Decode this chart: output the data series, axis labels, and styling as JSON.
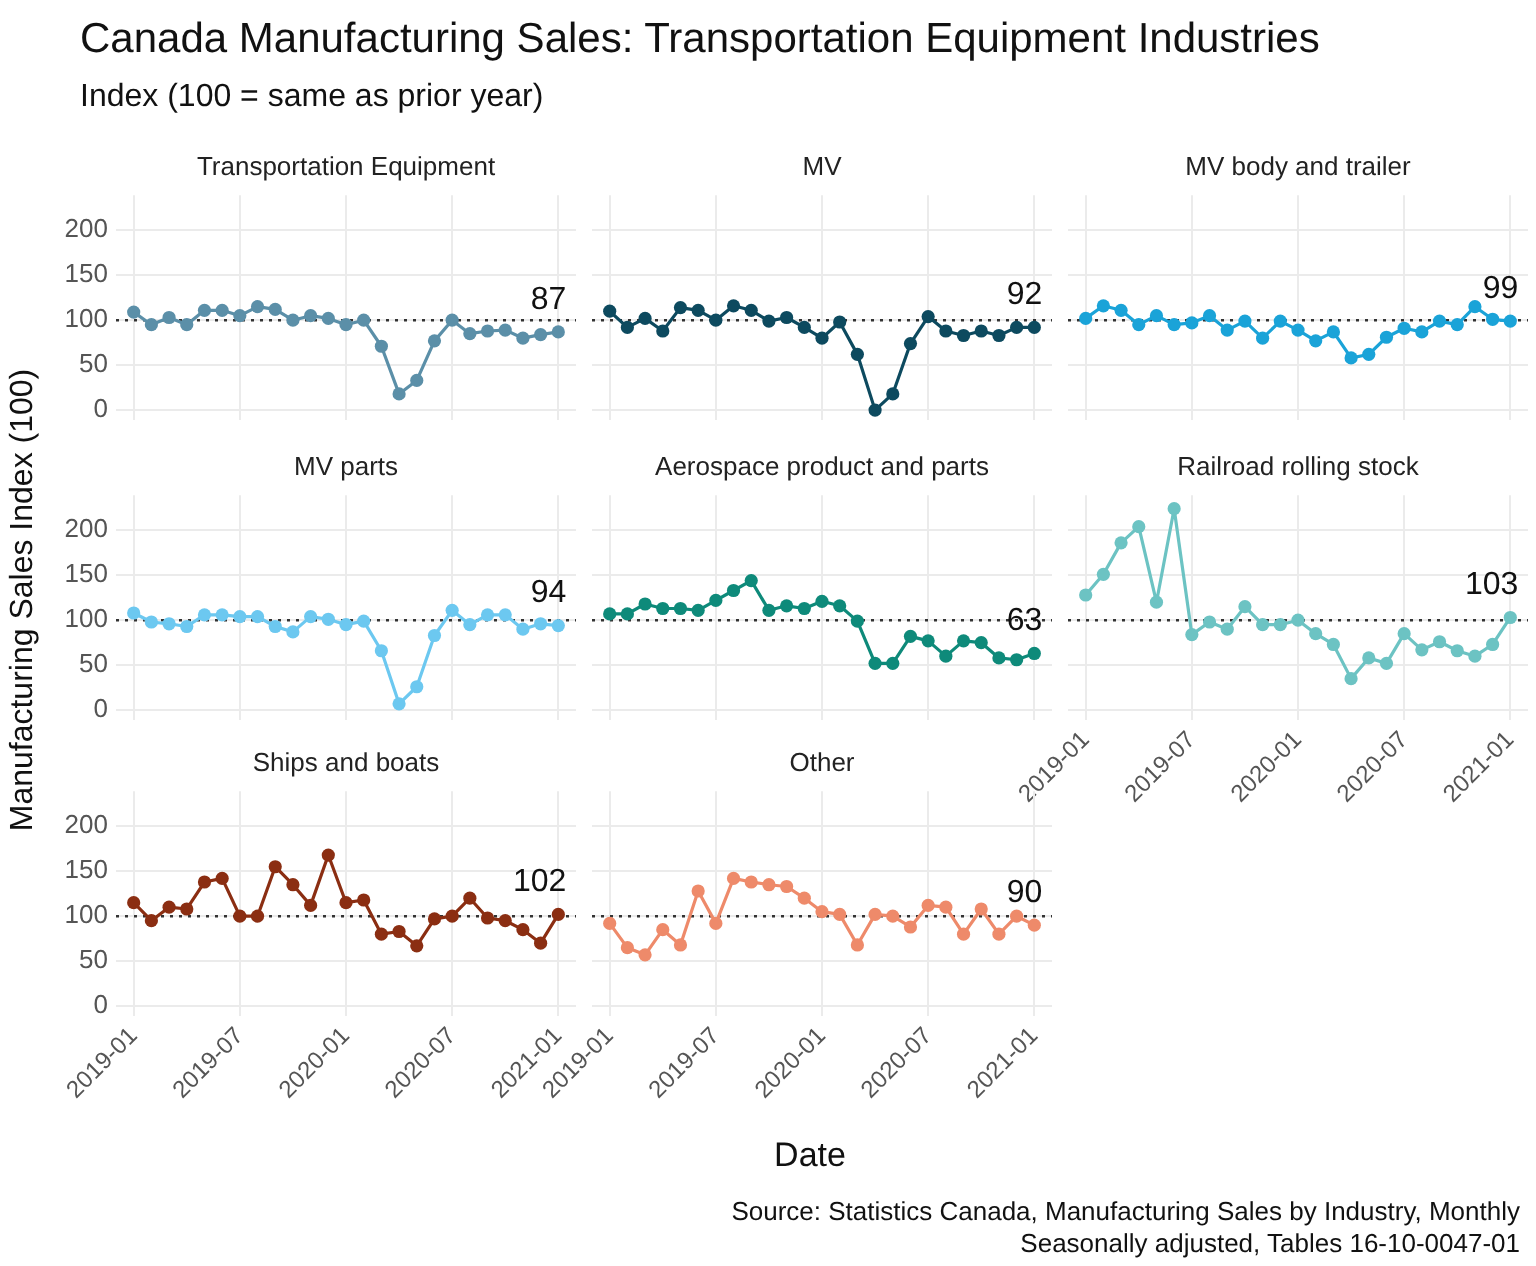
{
  "chart_data": [
    {
      "type": "line",
      "title": "Transportation Equipment",
      "x": [
        "2019-01",
        "2019-02",
        "2019-03",
        "2019-04",
        "2019-05",
        "2019-06",
        "2019-07",
        "2019-08",
        "2019-09",
        "2019-10",
        "2019-11",
        "2019-12",
        "2020-01",
        "2020-02",
        "2020-03",
        "2020-04",
        "2020-05",
        "2020-06",
        "2020-07",
        "2020-08",
        "2020-09",
        "2020-10",
        "2020-11",
        "2020-12",
        "2021-01"
      ],
      "series": [
        {
          "color": "#5b8fa8",
          "values": [
            109,
            95,
            103,
            95,
            111,
            111,
            105,
            115,
            112,
            100,
            105,
            102,
            95,
            100,
            71,
            18,
            33,
            77,
            100,
            85,
            88,
            89,
            80,
            84,
            87
          ]
        }
      ],
      "xlim": [
        "2018-12",
        "2021-02"
      ],
      "xticks": [
        "2019-01",
        "2019-07",
        "2020-01",
        "2020-07",
        "2021-01"
      ],
      "ylim": [
        -11,
        239
      ],
      "yticks": [
        0,
        50,
        100,
        150,
        200
      ],
      "ref_lines": [
        {
          "axis": "y",
          "value": 100,
          "color": "#333333",
          "line_style": "dotted"
        }
      ],
      "annotations": [
        {
          "text": "87",
          "x": "2021-01",
          "y": 87
        }
      ],
      "grid": true,
      "marker": "circle",
      "line_style": "solid",
      "tick_labels": "y"
    },
    {
      "type": "line",
      "title": "MV",
      "x": [
        "2019-01",
        "2019-02",
        "2019-03",
        "2019-04",
        "2019-05",
        "2019-06",
        "2019-07",
        "2019-08",
        "2019-09",
        "2019-10",
        "2019-11",
        "2019-12",
        "2020-01",
        "2020-02",
        "2020-03",
        "2020-04",
        "2020-05",
        "2020-06",
        "2020-07",
        "2020-08",
        "2020-09",
        "2020-10",
        "2020-11",
        "2020-12",
        "2021-01"
      ],
      "series": [
        {
          "color": "#0d4a5f",
          "values": [
            110,
            92,
            102,
            88,
            114,
            111,
            100,
            116,
            111,
            99,
            103,
            92,
            80,
            98,
            62,
            0,
            18,
            74,
            104,
            88,
            83,
            88,
            83,
            92,
            92
          ]
        }
      ],
      "xlim": [
        "2018-12",
        "2021-02"
      ],
      "xticks": [
        "2019-01",
        "2019-07",
        "2020-01",
        "2020-07",
        "2021-01"
      ],
      "ylim": [
        -11,
        239
      ],
      "yticks": [
        0,
        50,
        100,
        150,
        200
      ],
      "ref_lines": [
        {
          "axis": "y",
          "value": 100,
          "color": "#333333",
          "line_style": "dotted"
        }
      ],
      "annotations": [
        {
          "text": "92",
          "x": "2021-01",
          "y": 92
        }
      ],
      "grid": true,
      "marker": "circle",
      "line_style": "solid",
      "tick_labels": false
    },
    {
      "type": "line",
      "title": "MV body and trailer",
      "x": [
        "2019-01",
        "2019-02",
        "2019-03",
        "2019-04",
        "2019-05",
        "2019-06",
        "2019-07",
        "2019-08",
        "2019-09",
        "2019-10",
        "2019-11",
        "2019-12",
        "2020-01",
        "2020-02",
        "2020-03",
        "2020-04",
        "2020-05",
        "2020-06",
        "2020-07",
        "2020-08",
        "2020-09",
        "2020-10",
        "2020-11",
        "2020-12",
        "2021-01"
      ],
      "series": [
        {
          "color": "#1aa3d8",
          "values": [
            102,
            116,
            111,
            95,
            105,
            95,
            97,
            105,
            89,
            99,
            80,
            99,
            89,
            77,
            87,
            58,
            62,
            81,
            91,
            87,
            99,
            95,
            115,
            101,
            99
          ]
        }
      ],
      "xlim": [
        "2018-12",
        "2021-02"
      ],
      "xticks": [
        "2019-01",
        "2019-07",
        "2020-01",
        "2020-07",
        "2021-01"
      ],
      "ylim": [
        -11,
        239
      ],
      "yticks": [
        0,
        50,
        100,
        150,
        200
      ],
      "ref_lines": [
        {
          "axis": "y",
          "value": 100,
          "color": "#333333",
          "line_style": "dotted"
        }
      ],
      "annotations": [
        {
          "text": "99",
          "x": "2021-01",
          "y": 99
        }
      ],
      "grid": true,
      "marker": "circle",
      "line_style": "solid",
      "tick_labels": false
    },
    {
      "type": "line",
      "title": "MV parts",
      "ylabel": "Manufacturing Sales Index (100)",
      "x": [
        "2019-01",
        "2019-02",
        "2019-03",
        "2019-04",
        "2019-05",
        "2019-06",
        "2019-07",
        "2019-08",
        "2019-09",
        "2019-10",
        "2019-11",
        "2019-12",
        "2020-01",
        "2020-02",
        "2020-03",
        "2020-04",
        "2020-05",
        "2020-06",
        "2020-07",
        "2020-08",
        "2020-09",
        "2020-10",
        "2020-11",
        "2020-12",
        "2021-01"
      ],
      "series": [
        {
          "color": "#6cc8f0",
          "values": [
            108,
            98,
            96,
            93,
            106,
            106,
            104,
            104,
            93,
            87,
            104,
            101,
            95,
            99,
            66,
            7,
            26,
            83,
            111,
            95,
            106,
            106,
            90,
            96,
            94
          ]
        }
      ],
      "xlim": [
        "2018-12",
        "2021-02"
      ],
      "xticks": [
        "2019-01",
        "2019-07",
        "2020-01",
        "2020-07",
        "2021-01"
      ],
      "ylim": [
        -11,
        239
      ],
      "yticks": [
        0,
        50,
        100,
        150,
        200
      ],
      "ref_lines": [
        {
          "axis": "y",
          "value": 100,
          "color": "#333333",
          "line_style": "dotted"
        }
      ],
      "annotations": [
        {
          "text": "94",
          "x": "2021-01",
          "y": 94
        }
      ],
      "grid": true,
      "marker": "circle",
      "line_style": "solid",
      "tick_labels": "y"
    },
    {
      "type": "line",
      "title": "Aerospace product and parts",
      "x": [
        "2019-01",
        "2019-02",
        "2019-03",
        "2019-04",
        "2019-05",
        "2019-06",
        "2019-07",
        "2019-08",
        "2019-09",
        "2019-10",
        "2019-11",
        "2019-12",
        "2020-01",
        "2020-02",
        "2020-03",
        "2020-04",
        "2020-05",
        "2020-06",
        "2020-07",
        "2020-08",
        "2020-09",
        "2020-10",
        "2020-11",
        "2020-12",
        "2021-01"
      ],
      "series": [
        {
          "color": "#0e8a7a",
          "values": [
            107,
            107,
            118,
            113,
            113,
            111,
            122,
            133,
            144,
            111,
            116,
            113,
            121,
            116,
            99,
            52,
            52,
            82,
            77,
            60,
            77,
            75,
            58,
            56,
            63
          ]
        }
      ],
      "xlim": [
        "2018-12",
        "2021-02"
      ],
      "xticks": [
        "2019-01",
        "2019-07",
        "2020-01",
        "2020-07",
        "2021-01"
      ],
      "ylim": [
        -11,
        239
      ],
      "yticks": [
        0,
        50,
        100,
        150,
        200
      ],
      "ref_lines": [
        {
          "axis": "y",
          "value": 100,
          "color": "#333333",
          "line_style": "dotted"
        }
      ],
      "annotations": [
        {
          "text": "63",
          "x": "2021-01",
          "y": 63
        }
      ],
      "grid": true,
      "marker": "circle",
      "line_style": "solid",
      "tick_labels": false
    },
    {
      "type": "line",
      "title": "Railroad rolling stock",
      "x": [
        "2019-01",
        "2019-02",
        "2019-03",
        "2019-04",
        "2019-05",
        "2019-06",
        "2019-07",
        "2019-08",
        "2019-09",
        "2019-10",
        "2019-11",
        "2019-12",
        "2020-01",
        "2020-02",
        "2020-03",
        "2020-04",
        "2020-05",
        "2020-06",
        "2020-07",
        "2020-08",
        "2020-09",
        "2020-10",
        "2020-11",
        "2020-12",
        "2021-01"
      ],
      "series": [
        {
          "color": "#6cc3c3",
          "values": [
            128,
            151,
            186,
            204,
            120,
            224,
            84,
            98,
            90,
            115,
            95,
            95,
            100,
            85,
            73,
            35,
            58,
            52,
            85,
            67,
            76,
            66,
            60,
            73,
            103
          ]
        }
      ],
      "xlim": [
        "2018-12",
        "2021-02"
      ],
      "xticks": [
        "2019-01",
        "2019-07",
        "2020-01",
        "2020-07",
        "2021-01"
      ],
      "ylim": [
        -11,
        239
      ],
      "yticks": [
        0,
        50,
        100,
        150,
        200
      ],
      "ref_lines": [
        {
          "axis": "y",
          "value": 100,
          "color": "#333333",
          "line_style": "dotted"
        }
      ],
      "annotations": [
        {
          "text": "103",
          "x": "2021-01",
          "y": 103
        }
      ],
      "grid": true,
      "marker": "circle",
      "line_style": "solid",
      "tick_labels": "x"
    },
    {
      "type": "line",
      "title": "Ships and boats",
      "x": [
        "2019-01",
        "2019-02",
        "2019-03",
        "2019-04",
        "2019-05",
        "2019-06",
        "2019-07",
        "2019-08",
        "2019-09",
        "2019-10",
        "2019-11",
        "2019-12",
        "2020-01",
        "2020-02",
        "2020-03",
        "2020-04",
        "2020-05",
        "2020-06",
        "2020-07",
        "2020-08",
        "2020-09",
        "2020-10",
        "2020-11",
        "2020-12",
        "2021-01"
      ],
      "series": [
        {
          "color": "#8b2e12",
          "values": [
            115,
            95,
            110,
            108,
            138,
            142,
            100,
            100,
            155,
            135,
            112,
            168,
            115,
            118,
            80,
            83,
            67,
            97,
            100,
            120,
            98,
            95,
            85,
            70,
            102
          ]
        }
      ],
      "xlim": [
        "2018-12",
        "2021-02"
      ],
      "xticks": [
        "2019-01",
        "2019-07",
        "2020-01",
        "2020-07",
        "2021-01"
      ],
      "ylim": [
        -11,
        239
      ],
      "yticks": [
        0,
        50,
        100,
        150,
        200
      ],
      "ref_lines": [
        {
          "axis": "y",
          "value": 100,
          "color": "#333333",
          "line_style": "dotted"
        }
      ],
      "annotations": [
        {
          "text": "102",
          "x": "2021-01",
          "y": 102
        }
      ],
      "grid": true,
      "marker": "circle",
      "line_style": "solid"
    },
    {
      "type": "line",
      "title": "Other",
      "xlabel": "Date",
      "x": [
        "2019-01",
        "2019-02",
        "2019-03",
        "2019-04",
        "2019-05",
        "2019-06",
        "2019-07",
        "2019-08",
        "2019-09",
        "2019-10",
        "2019-11",
        "2019-12",
        "2020-01",
        "2020-02",
        "2020-03",
        "2020-04",
        "2020-05",
        "2020-06",
        "2020-07",
        "2020-08",
        "2020-09",
        "2020-10",
        "2020-11",
        "2020-12",
        "2021-01"
      ],
      "series": [
        {
          "color": "#ee8a6a",
          "values": [
            92,
            65,
            57,
            85,
            68,
            128,
            92,
            142,
            138,
            135,
            133,
            120,
            105,
            102,
            68,
            102,
            100,
            88,
            112,
            110,
            80,
            108,
            80,
            100,
            90
          ]
        }
      ],
      "xlim": [
        "2018-12",
        "2021-02"
      ],
      "xticks": [
        "2019-01",
        "2019-07",
        "2020-01",
        "2020-07",
        "2021-01"
      ],
      "ylim": [
        -11,
        239
      ],
      "yticks": [
        0,
        50,
        100,
        150,
        200
      ],
      "ref_lines": [
        {
          "axis": "y",
          "value": 100,
          "color": "#333333",
          "line_style": "dotted"
        }
      ],
      "annotations": [
        {
          "text": "90",
          "x": "2021-01",
          "y": 90
        }
      ],
      "grid": true,
      "marker": "circle",
      "line_style": "solid",
      "tick_labels": "x"
    },
    {
      "type": "other",
      "title": "Canada Manufacturing Sales: Transportation Equipment Industries",
      "subtitle": "Index (100 = same as prior year)",
      "annotations": [
        "Source: Statistics Canada, Manufacturing Sales by Industry, Monthly",
        "Seasonally adjusted, Tables 16-10-0047-01"
      ]
    }
  ]
}
